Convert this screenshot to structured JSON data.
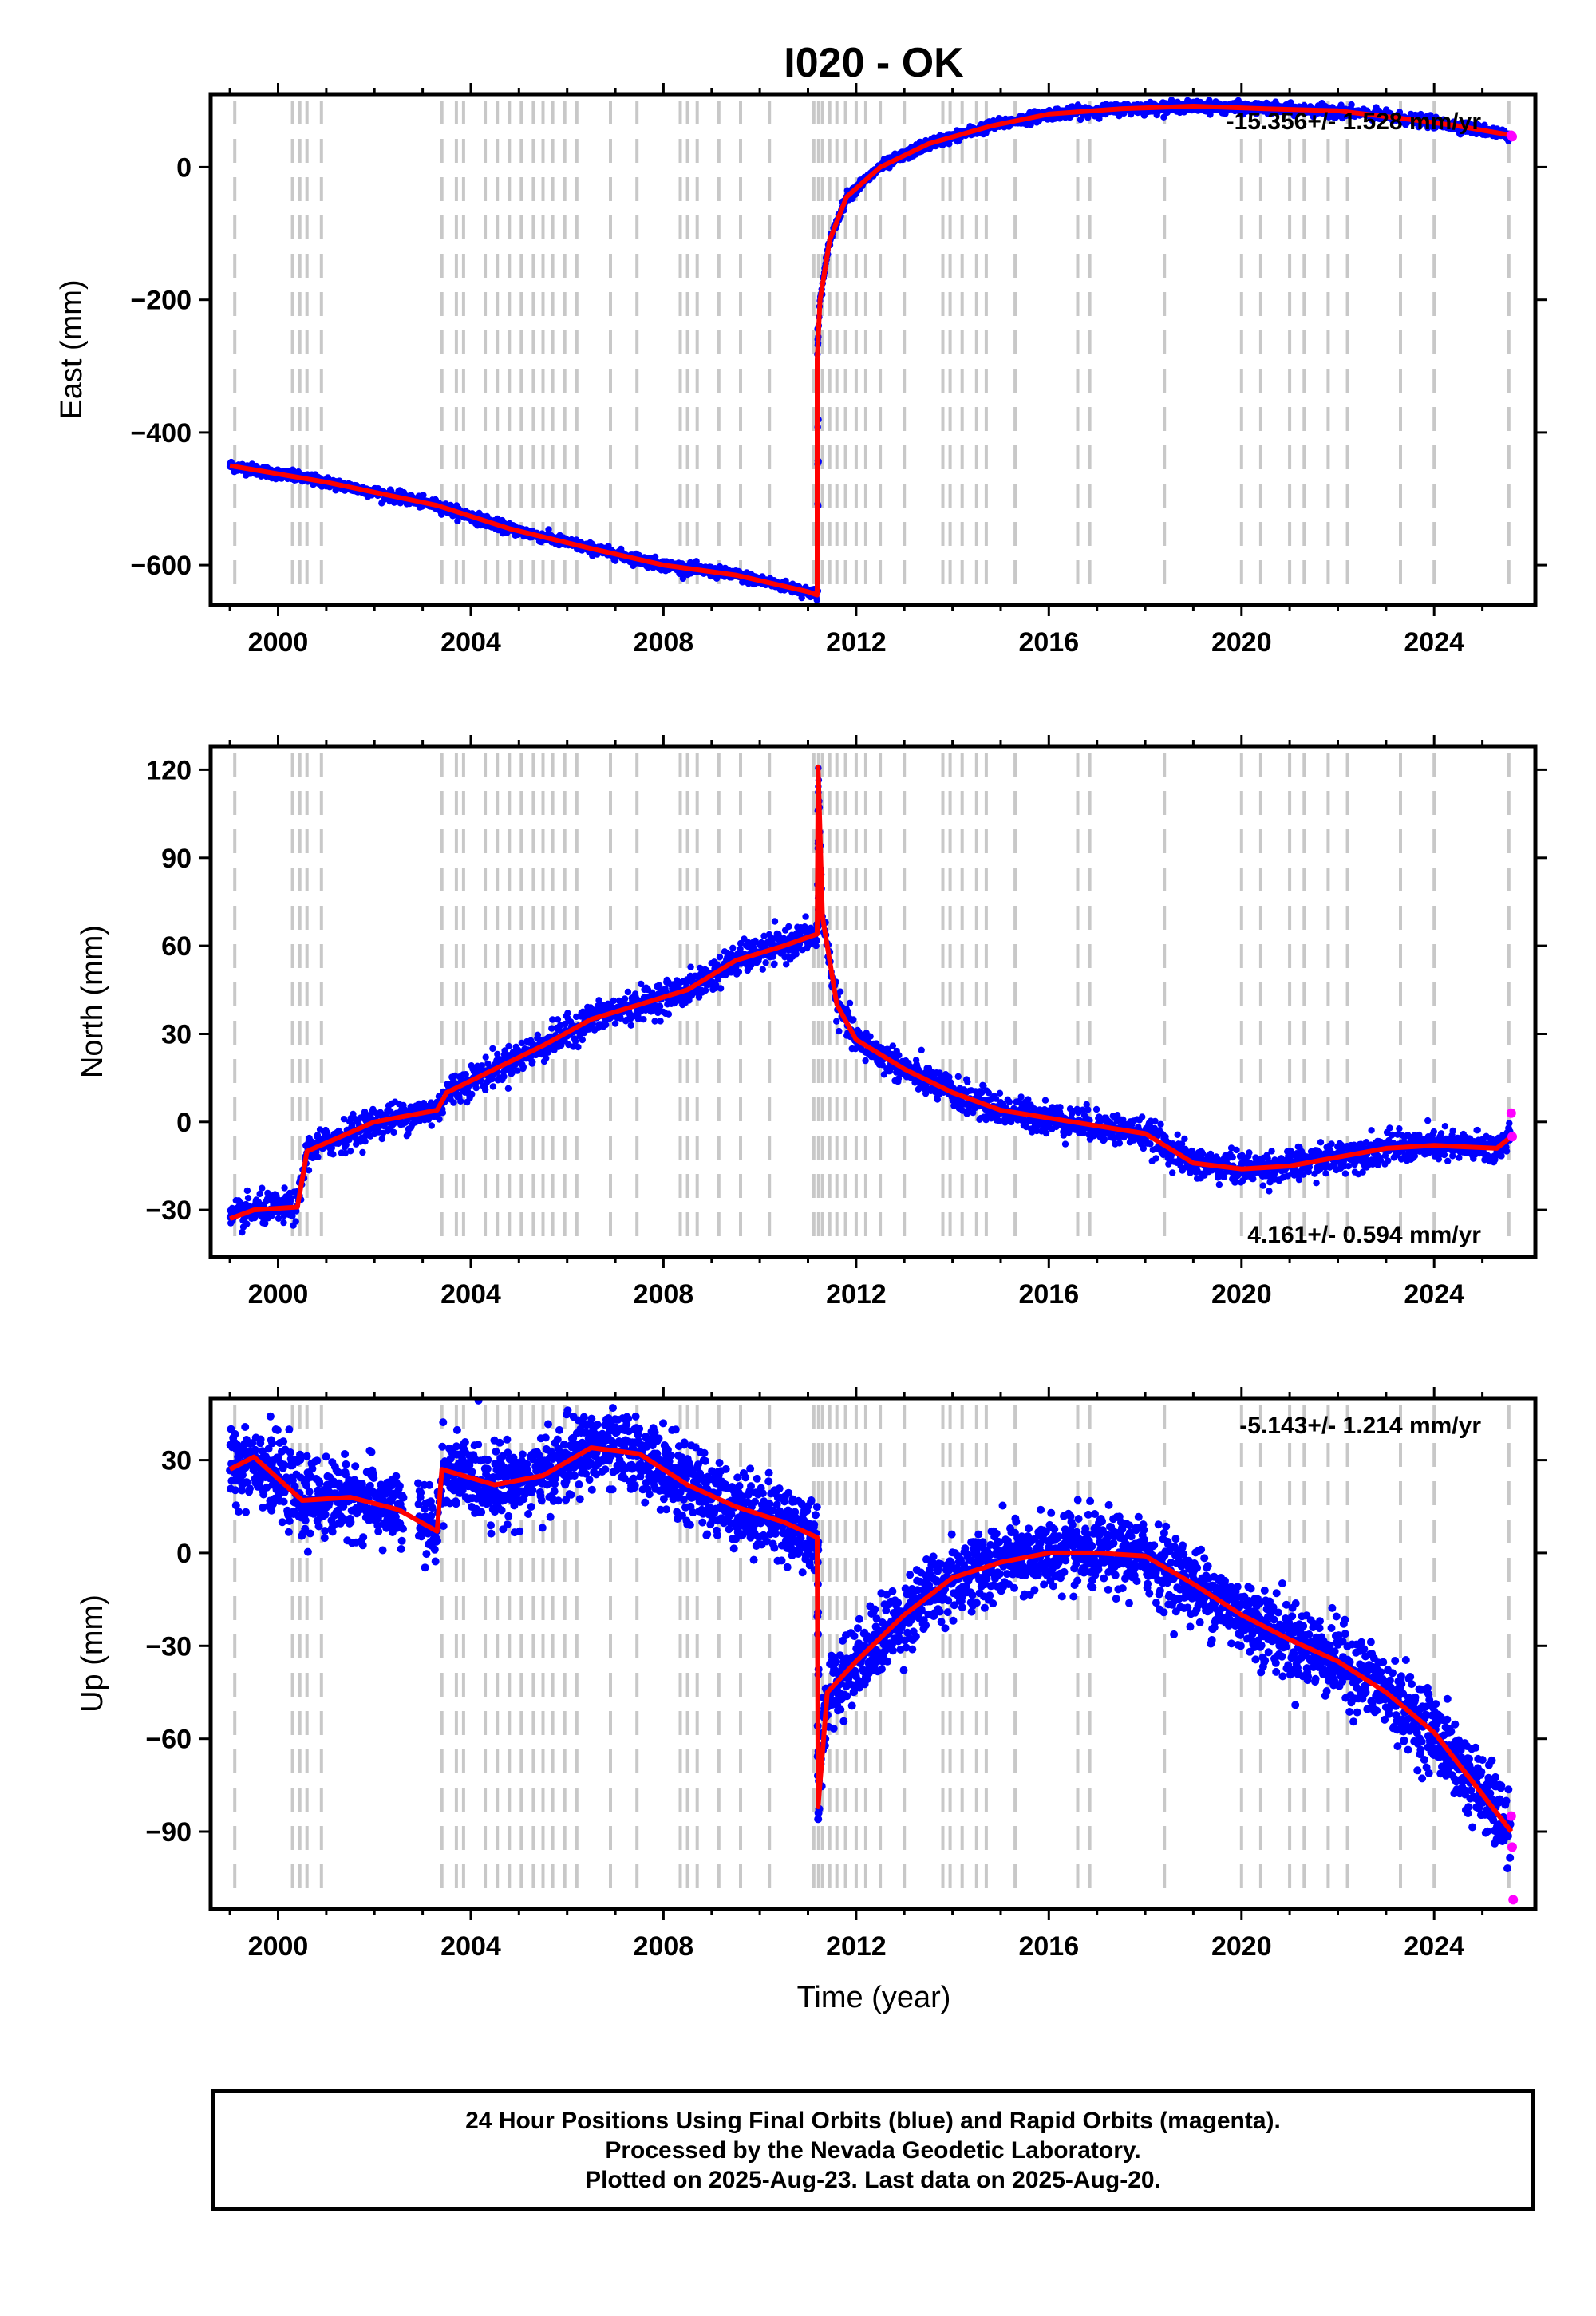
{
  "title": "I020 - OK",
  "xlabel": "Time (year)",
  "footer": {
    "line1": "24 Hour Positions Using Final Orbits (blue) and Rapid Orbits (magenta).",
    "line2": "Processed by the Nevada Geodetic Laboratory.",
    "line3": "Plotted on 2025-Aug-23. Last data on 2025-Aug-20."
  },
  "colors": {
    "final_orbits": "#0000ff",
    "rapid_orbits": "#ff00ff",
    "model": "#ff0000",
    "event_lines": "#c8c8c8",
    "axes": "#000000"
  },
  "chart_data": [
    {
      "type": "scatter",
      "ylabel": "East (mm)",
      "xlim": [
        1998.6,
        2026.1
      ],
      "ylim": [
        -660,
        110
      ],
      "yticks": [
        -600,
        -400,
        -200,
        0
      ],
      "xticks": [
        2000,
        2004,
        2008,
        2012,
        2016,
        2020,
        2024
      ],
      "rate_text": "-15.356+/- 1.528 mm/yr",
      "rate_position": "top-right",
      "grid": false,
      "model_points": [
        [
          1999.0,
          -450
        ],
        [
          2001.0,
          -475
        ],
        [
          2003.3,
          -510
        ],
        [
          2004.8,
          -545
        ],
        [
          2006.5,
          -575
        ],
        [
          2008.0,
          -600
        ],
        [
          2009.5,
          -615
        ],
        [
          2011.0,
          -640
        ],
        [
          2011.19,
          -645
        ],
        [
          2011.19,
          -290
        ],
        [
          2011.25,
          -200
        ],
        [
          2011.45,
          -110
        ],
        [
          2011.8,
          -45
        ],
        [
          2012.5,
          0
        ],
        [
          2013.5,
          35
        ],
        [
          2014.8,
          62
        ],
        [
          2016.0,
          80
        ],
        [
          2017.5,
          88
        ],
        [
          2019.0,
          92
        ],
        [
          2020.5,
          88
        ],
        [
          2022.0,
          85
        ],
        [
          2023.5,
          72
        ],
        [
          2024.5,
          62
        ],
        [
          2025.6,
          48
        ]
      ],
      "rapid_points": [
        [
          2025.6,
          48
        ],
        [
          2025.62,
          46
        ]
      ]
    },
    {
      "type": "scatter",
      "ylabel": "North (mm)",
      "xlim": [
        1998.6,
        2026.1
      ],
      "ylim": [
        -46,
        128
      ],
      "yticks": [
        -30,
        0,
        30,
        60,
        90,
        120
      ],
      "xticks": [
        2000,
        2004,
        2008,
        2012,
        2016,
        2020,
        2024
      ],
      "rate_text": "4.161+/- 0.594 mm/yr",
      "rate_position": "bottom-right",
      "grid": false,
      "model_points": [
        [
          1999.0,
          -33
        ],
        [
          1999.5,
          -30
        ],
        [
          2000.4,
          -29
        ],
        [
          2000.6,
          -10
        ],
        [
          2001.3,
          -5
        ],
        [
          2002.0,
          0
        ],
        [
          2003.3,
          4
        ],
        [
          2003.5,
          10
        ],
        [
          2004.5,
          18
        ],
        [
          2005.5,
          26
        ],
        [
          2006.5,
          35
        ],
        [
          2007.5,
          40
        ],
        [
          2008.5,
          45
        ],
        [
          2009.5,
          55
        ],
        [
          2010.5,
          60
        ],
        [
          2011.19,
          64
        ],
        [
          2011.21,
          121
        ],
        [
          2011.3,
          70
        ],
        [
          2011.6,
          40
        ],
        [
          2012.0,
          28
        ],
        [
          2013.0,
          18
        ],
        [
          2014.0,
          10
        ],
        [
          2015.0,
          4
        ],
        [
          2016.5,
          0
        ],
        [
          2018.0,
          -4
        ],
        [
          2019.0,
          -14
        ],
        [
          2020.0,
          -16
        ],
        [
          2021.0,
          -15
        ],
        [
          2022.0,
          -12
        ],
        [
          2023.0,
          -9
        ],
        [
          2024.0,
          -8
        ],
        [
          2025.3,
          -9
        ],
        [
          2025.6,
          -5
        ]
      ],
      "rapid_points": [
        [
          2025.6,
          3
        ],
        [
          2025.62,
          -5
        ]
      ]
    },
    {
      "type": "scatter",
      "ylabel": "Up (mm)",
      "xlim": [
        1998.6,
        2026.1
      ],
      "ylim": [
        -115,
        50
      ],
      "yticks": [
        -90,
        -60,
        -30,
        0,
        30
      ],
      "xticks": [
        2000,
        2004,
        2008,
        2012,
        2016,
        2020,
        2024
      ],
      "rate_text": "-5.143+/- 1.214 mm/yr",
      "rate_position": "top-right",
      "grid": false,
      "model_points": [
        [
          1999.0,
          27
        ],
        [
          1999.5,
          31
        ],
        [
          2000.0,
          24
        ],
        [
          2000.5,
          17
        ],
        [
          2001.5,
          18
        ],
        [
          2002.5,
          14
        ],
        [
          2003.3,
          7
        ],
        [
          2003.4,
          27
        ],
        [
          2004.5,
          22
        ],
        [
          2005.5,
          25
        ],
        [
          2006.5,
          34
        ],
        [
          2007.5,
          32
        ],
        [
          2008.5,
          22
        ],
        [
          2009.5,
          15
        ],
        [
          2010.5,
          10
        ],
        [
          2011.19,
          5
        ],
        [
          2011.21,
          -82
        ],
        [
          2011.4,
          -45
        ],
        [
          2012.0,
          -35
        ],
        [
          2013.0,
          -20
        ],
        [
          2014.0,
          -8
        ],
        [
          2015.0,
          -3
        ],
        [
          2016.0,
          0
        ],
        [
          2017.0,
          0
        ],
        [
          2018.0,
          -1
        ],
        [
          2019.0,
          -10
        ],
        [
          2020.0,
          -20
        ],
        [
          2021.0,
          -28
        ],
        [
          2022.0,
          -35
        ],
        [
          2023.0,
          -45
        ],
        [
          2024.0,
          -58
        ],
        [
          2025.0,
          -78
        ],
        [
          2025.6,
          -90
        ]
      ],
      "rapid_points": [
        [
          2025.6,
          -85
        ],
        [
          2025.62,
          -95
        ],
        [
          2025.64,
          -112
        ]
      ]
    }
  ],
  "event_years": [
    1999.1,
    2000.3,
    2000.45,
    2000.6,
    2000.9,
    2003.4,
    2003.7,
    2003.85,
    2004.3,
    2004.55,
    2004.8,
    2005.05,
    2005.3,
    2005.5,
    2005.7,
    2005.95,
    2006.2,
    2006.9,
    2007.45,
    2008.35,
    2008.5,
    2008.7,
    2009.15,
    2009.6,
    2010.2,
    2011.12,
    2011.22,
    2011.3,
    2011.45,
    2011.6,
    2011.78,
    2012.0,
    2012.2,
    2012.5,
    2013.0,
    2013.8,
    2013.95,
    2014.2,
    2014.5,
    2014.7,
    2015.3,
    2016.6,
    2016.85,
    2018.4,
    2020.0,
    2020.4,
    2021.0,
    2021.3,
    2021.8,
    2022.2,
    2023.3,
    2024.0,
    2025.55
  ]
}
